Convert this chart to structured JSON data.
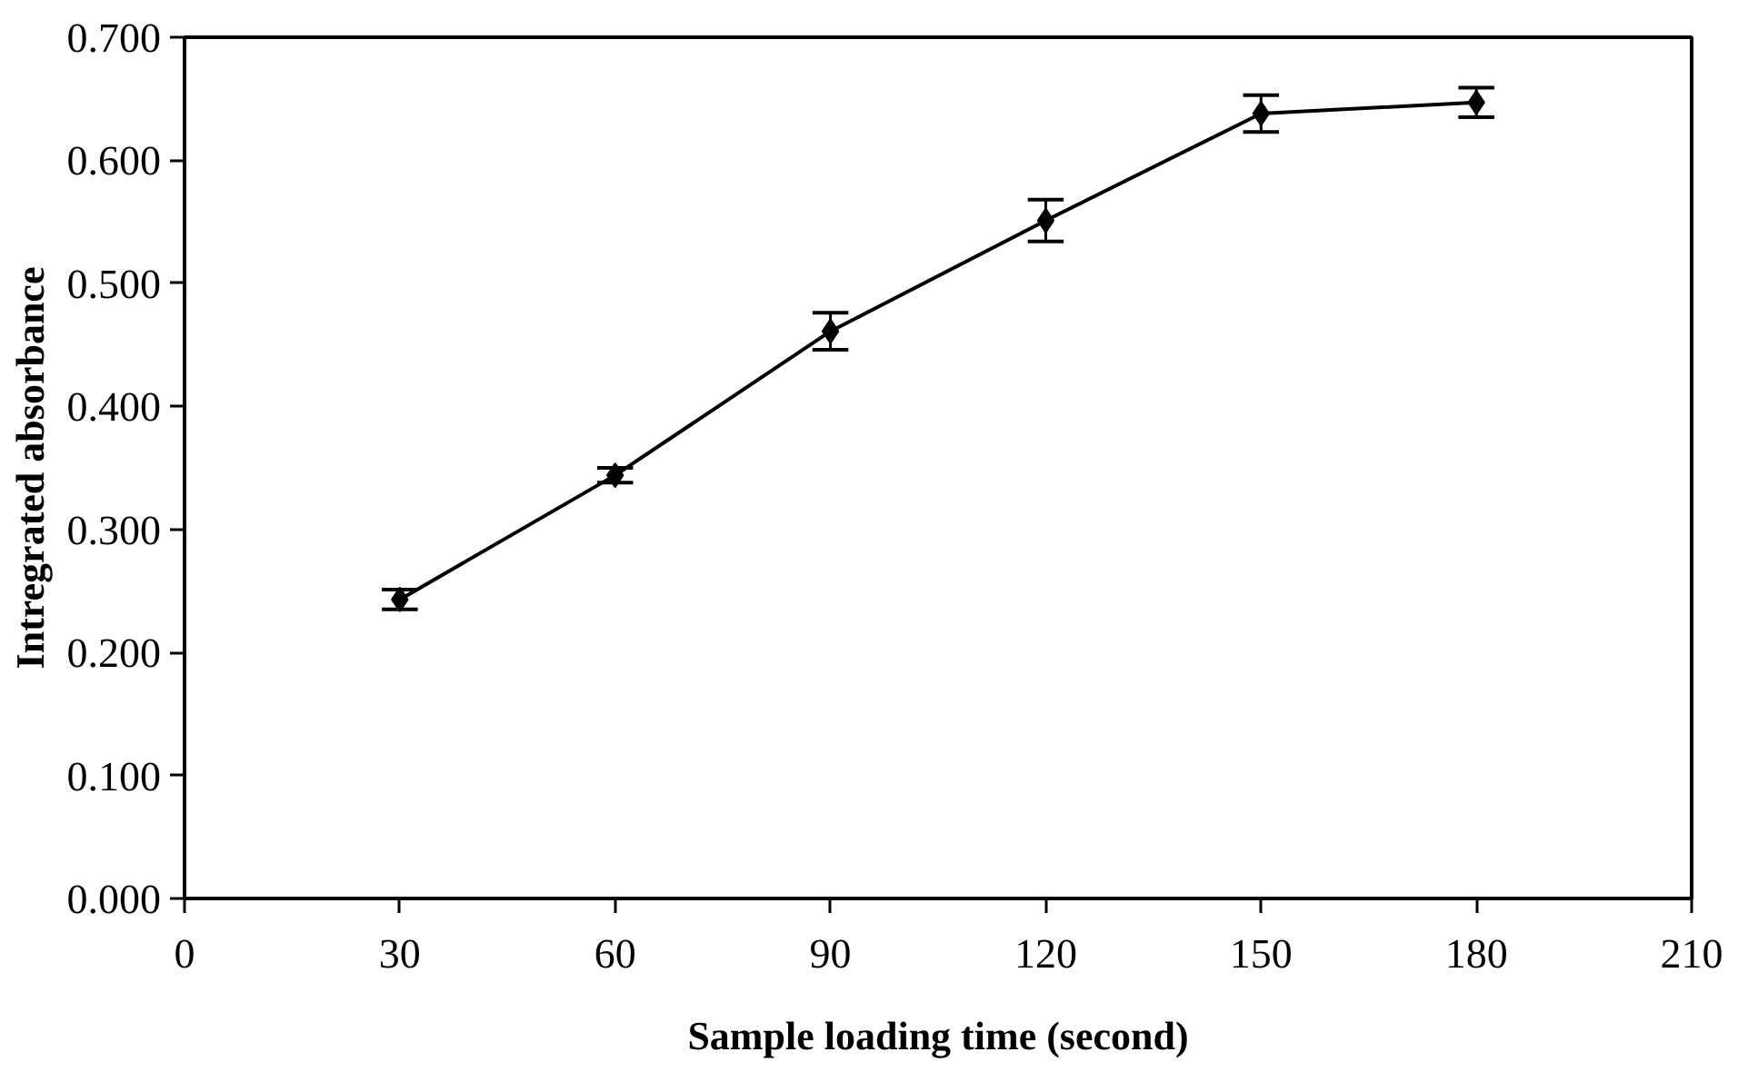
{
  "chart_data": {
    "type": "line",
    "xlabel": "Sample loading time (second)",
    "ylabel": "Intregrated absorbance",
    "x": [
      30,
      60,
      90,
      120,
      150,
      180
    ],
    "series": [
      {
        "color": "#000000",
        "values": [
          0.243,
          0.344,
          0.461,
          0.551,
          0.638,
          0.647
        ],
        "errors": [
          0.008,
          0.006,
          0.015,
          0.017,
          0.015,
          0.012
        ]
      }
    ],
    "xlim": [
      0,
      210
    ],
    "xticks": [
      0,
      30,
      60,
      90,
      120,
      150,
      180,
      210
    ],
    "ylim": [
      0,
      0.7
    ],
    "yticks": [
      {
        "value": 0,
        "label": "0.000"
      },
      {
        "value": 0.1,
        "label": "0.100"
      },
      {
        "value": 0.2,
        "label": "0.200"
      },
      {
        "value": 0.3,
        "label": "0.300"
      },
      {
        "value": 0.4,
        "label": "0.400"
      },
      {
        "value": 0.5,
        "label": "0.500"
      },
      {
        "value": 0.6,
        "label": "0.600"
      },
      {
        "value": 0.7,
        "label": "0.700"
      }
    ],
    "grid": false,
    "marker": "diamond",
    "line_style": "solid"
  }
}
